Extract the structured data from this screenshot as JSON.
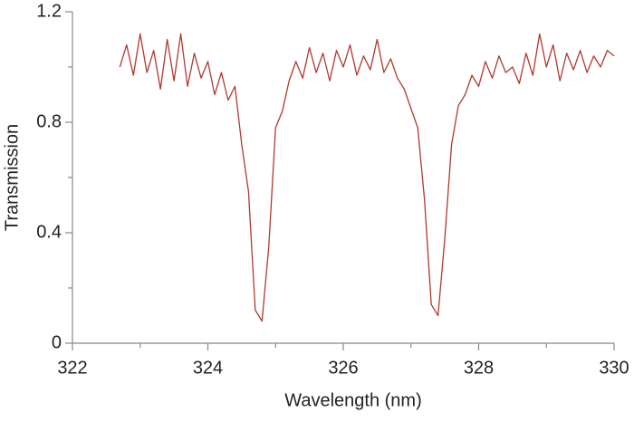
{
  "chart_data": {
    "type": "line",
    "x_label": "Wavelength (nm)",
    "y_label": "Transmission",
    "xlim": [
      322,
      330
    ],
    "xticks": [
      322,
      324,
      326,
      328,
      330
    ],
    "xminorticks": [
      323,
      325,
      327,
      329
    ],
    "ylim": [
      0,
      1.2
    ],
    "yticks": [
      0,
      0.4,
      0.8,
      1.2
    ],
    "yminorticks": [
      0.2,
      0.6,
      1.0
    ],
    "grid": false,
    "series": [
      {
        "color": "#b03a2e",
        "x": [
          322.7,
          322.8,
          322.9,
          323.0,
          323.1,
          323.2,
          323.3,
          323.4,
          323.5,
          323.6,
          323.7,
          323.8,
          323.9,
          324.0,
          324.1,
          324.2,
          324.3,
          324.4,
          324.5,
          324.6,
          324.7,
          324.8,
          324.9,
          325.0,
          325.1,
          325.2,
          325.3,
          325.4,
          325.5,
          325.6,
          325.7,
          325.8,
          325.9,
          326.0,
          326.1,
          326.2,
          326.3,
          326.4,
          326.5,
          326.6,
          326.7,
          326.8,
          326.9,
          327.0,
          327.1,
          327.2,
          327.3,
          327.4,
          327.5,
          327.6,
          327.7,
          327.8,
          327.9,
          328.0,
          328.1,
          328.2,
          328.3,
          328.4,
          328.5,
          328.6,
          328.7,
          328.8,
          328.9,
          329.0,
          329.1,
          329.2,
          329.3,
          329.4,
          329.5,
          329.6,
          329.7,
          329.8,
          329.9,
          330.0
        ],
        "values": [
          1.0,
          1.08,
          0.97,
          1.12,
          0.98,
          1.06,
          0.92,
          1.1,
          0.95,
          1.12,
          0.93,
          1.05,
          0.96,
          1.02,
          0.9,
          0.98,
          0.88,
          0.93,
          0.72,
          0.55,
          0.12,
          0.08,
          0.35,
          0.78,
          0.84,
          0.95,
          1.02,
          0.96,
          1.07,
          0.98,
          1.05,
          0.95,
          1.06,
          1.0,
          1.08,
          0.97,
          1.04,
          0.99,
          1.1,
          0.98,
          1.03,
          0.96,
          0.92,
          0.85,
          0.78,
          0.52,
          0.14,
          0.1,
          0.38,
          0.72,
          0.86,
          0.9,
          0.97,
          0.93,
          1.02,
          0.96,
          1.04,
          0.98,
          1.0,
          0.94,
          1.05,
          0.97,
          1.12,
          1.0,
          1.08,
          0.95,
          1.05,
          0.99,
          1.06,
          0.98,
          1.04,
          1.0,
          1.06,
          1.04
        ]
      }
    ]
  }
}
